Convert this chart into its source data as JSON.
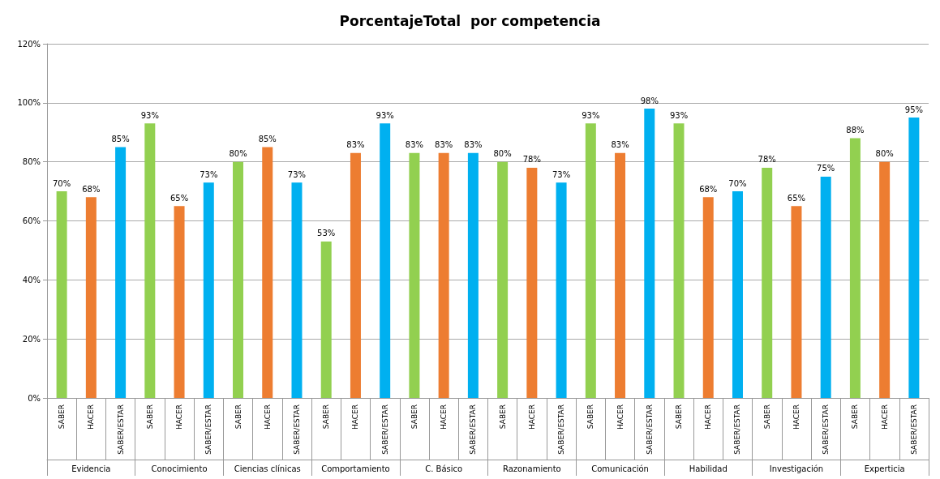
{
  "chart_data": {
    "type": "bar",
    "title": "PorcentajeTotal  por competencia",
    "categories": [
      "SABER",
      "HACER",
      "SABER/ESTAR",
      "SABER",
      "HACER",
      "SABER/ESTAR",
      "SABER",
      "HACER",
      "SABER/ESTAR",
      "SABER",
      "HACER",
      "SABER/ESTAR",
      "SABER",
      "HACER",
      "SABER/ESTAR",
      "SABER",
      "HACER",
      "SABER/ESTAR",
      "SABER",
      "HACER",
      "SABER/ESTAR",
      "SABER",
      "HACER",
      "SABER/ESTAR",
      "SABER",
      "HACER",
      "SABER/ESTAR",
      "SABER",
      "HACER",
      "SABER/ESTAR"
    ],
    "values": [
      70,
      68,
      85,
      93,
      65,
      73,
      80,
      85,
      73,
      53,
      83,
      93,
      83,
      83,
      83,
      80,
      78,
      73,
      93,
      83,
      98,
      93,
      68,
      70,
      78,
      65,
      75,
      88,
      80,
      95
    ],
    "value_labels": [
      "70%",
      "68%",
      "85%",
      "93%",
      "65%",
      "73%",
      "80%",
      "85%",
      "73%",
      "53%",
      "83%",
      "93%",
      "83%",
      "83%",
      "83%",
      "80%",
      "78%",
      "73%",
      "93%",
      "83%",
      "98%",
      "93%",
      "68%",
      "70%",
      "78%",
      "65%",
      "75%",
      "88%",
      "80%",
      "95%"
    ],
    "colors": [
      "#92d050",
      "#ed7d31",
      "#00b0f0",
      "#92d050",
      "#ed7d31",
      "#00b0f0",
      "#92d050",
      "#ed7d31",
      "#00b0f0",
      "#92d050",
      "#ed7d31",
      "#00b0f0",
      "#92d050",
      "#ed7d31",
      "#00b0f0",
      "#92d050",
      "#ed7d31",
      "#00b0f0",
      "#92d050",
      "#ed7d31",
      "#00b0f0",
      "#92d050",
      "#ed7d31",
      "#00b0f0",
      "#92d050",
      "#ed7d31",
      "#00b0f0",
      "#92d050",
      "#ed7d31",
      "#00b0f0"
    ],
    "annotations": [
      "Evidencia",
      "Conocimiento",
      "Ciencias clínicas",
      "Comportamiento",
      "C. Básico",
      "Razonamiento",
      "Comunicación",
      "Habilidad",
      "Investigación",
      "Experticia"
    ],
    "ylim": [
      0,
      120
    ],
    "yticks": [
      {
        "value": 0,
        "label": "0%"
      },
      {
        "value": 20,
        "label": "20%"
      },
      {
        "value": 40,
        "label": "40%"
      },
      {
        "value": 60,
        "label": "60%"
      },
      {
        "value": 80,
        "label": "80%"
      },
      {
        "value": 100,
        "label": "100%"
      },
      {
        "value": 120,
        "label": "120%"
      }
    ],
    "grid": "y"
  }
}
